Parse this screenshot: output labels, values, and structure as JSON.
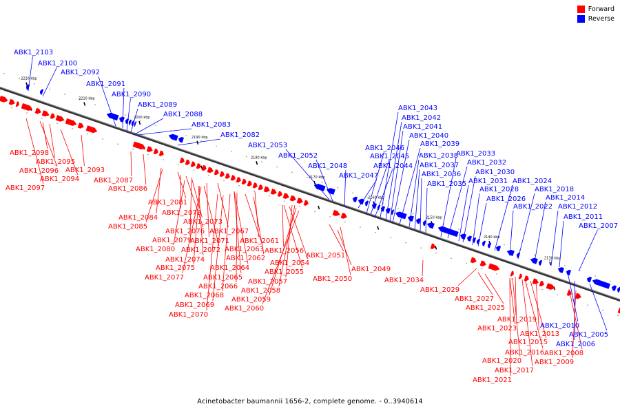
{
  "caption": "Acinetobacter baumannii 1656-2, complete genome. - 0..3940614",
  "legend": {
    "forward_label": "Forward",
    "reverse_label": "Reverse",
    "forward_color": "#ff0000",
    "reverse_color": "#0000ff"
  },
  "ticks": [
    "2220 kbp",
    "2210 kbp",
    "2200 kbp",
    "2190 kbp",
    "2180 kbp",
    "2170 kbp",
    "2160 kbp",
    "2150 kbp",
    "2140 kbp",
    "2130 kbp"
  ],
  "reverse_genes": [
    "ABK1_2103",
    "ABK1_2100",
    "ABK1_2092",
    "ABK1_2091",
    "ABK1_2090",
    "ABK1_2089",
    "ABK1_2088",
    "ABK1_2083",
    "ABK1_2082",
    "ABK1_2053",
    "ABK1_2052",
    "ABK1_2048",
    "ABK1_2047",
    "ABK1_2046",
    "ABK1_2045",
    "ABK1_2044",
    "ABK1_2043",
    "ABK1_2042",
    "ABK1_2041",
    "ABK1_2040",
    "ABK1_2039",
    "ABK1_2038",
    "ABK1_2037",
    "ABK1_2036",
    "ABK1_2035",
    "ABK1_2033",
    "ABK1_2032",
    "ABK1_2031",
    "ABK1_2030",
    "ABK1_2028",
    "ABK1_2026",
    "ABK1_2024",
    "ABK1_2022",
    "ABK1_2018",
    "ABK1_2014",
    "ABK1_2012",
    "ABK1_2011",
    "ABK1_2007",
    "ABK1_2010",
    "ABK1_2005",
    "ABK1_2006"
  ],
  "forward_genes": [
    "ABK1_2098",
    "ABK1_2095",
    "ABK1_2096",
    "ABK1_2093",
    "ABK1_2094",
    "ABK1_2097",
    "ABK1_2087",
    "ABK1_2086",
    "ABK1_2081",
    "ABK1_2084",
    "ABK1_2078",
    "ABK1_2085",
    "ABK1_2076",
    "ABK1_2073",
    "ABK1_2067",
    "ABK1_2079",
    "ABK1_2071",
    "ABK1_2061",
    "ABK1_2080",
    "ABK1_2072",
    "ABK1_2063",
    "ABK1_2056",
    "ABK1_2074",
    "ABK1_2062",
    "ABK1_2054",
    "ABK1_2075",
    "ABK1_2064",
    "ABK1_2055",
    "ABK1_2077",
    "ABK1_2065",
    "ABK1_2057",
    "ABK1_2066",
    "ABK1_2058",
    "ABK1_2068",
    "ABK1_2059",
    "ABK1_2069",
    "ABK1_2060",
    "ABK1_2070",
    "ABK1_2051",
    "ABK1_2050",
    "ABK1_2049",
    "ABK1_2034",
    "ABK1_2029",
    "ABK1_2027",
    "ABK1_2025",
    "ABK1_2019",
    "ABK1_2023",
    "ABK1_2013",
    "ABK1_2015",
    "ABK1_2016",
    "ABK1_2008",
    "ABK1_2009",
    "ABK1_2020",
    "ABK1_2017",
    "ABK1_2021"
  ]
}
